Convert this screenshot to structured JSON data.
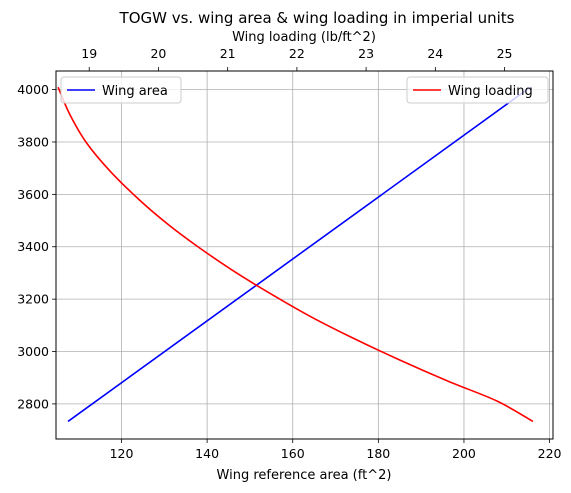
{
  "chart_data": {
    "type": "line",
    "title": "TOGW vs. wing area & wing loading in imperial units",
    "xlabel": "Wing reference area (ft^2)",
    "x2label": "Wing loading (lb/ft^2)",
    "ylabel": "",
    "xlim": [
      104.7,
      220.8
    ],
    "ylim": [
      2666,
      4071
    ],
    "x2lim": [
      18.52,
      25.7
    ],
    "xticks": [
      120,
      140,
      160,
      180,
      200,
      220
    ],
    "x2ticks": [
      19,
      20,
      21,
      22,
      23,
      24,
      25
    ],
    "yticks": [
      2800,
      3000,
      3200,
      3400,
      3600,
      3800,
      4000
    ],
    "grid": true,
    "series": [
      {
        "name": "Wing area",
        "axis": "bottom",
        "color": "#0000ff",
        "x": [
          107.5,
          215.5
        ],
        "y": [
          2733,
          4009
        ]
      },
      {
        "name": "Wing loading",
        "axis": "top",
        "color": "#ff0000",
        "x": [
          18.55,
          18.72,
          18.96,
          19.29,
          19.72,
          20.15,
          20.56,
          21.07,
          21.58,
          22.18,
          22.79,
          23.49,
          24.19,
          24.89,
          25.41
        ],
        "y": [
          4009,
          3905,
          3797,
          3692,
          3580,
          3483,
          3402,
          3310,
          3227,
          3136,
          3054,
          2967,
          2886,
          2811,
          2733
        ]
      }
    ],
    "legends": [
      {
        "placement": "upper-left",
        "entries": [
          "Wing area"
        ]
      },
      {
        "placement": "upper-right",
        "entries": [
          "Wing loading"
        ]
      }
    ]
  }
}
